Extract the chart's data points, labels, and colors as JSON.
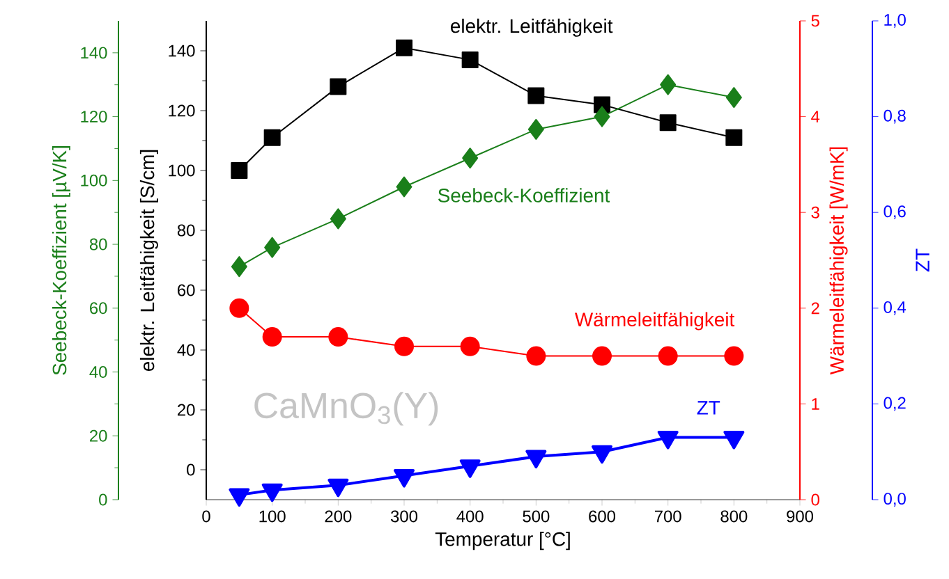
{
  "chart_data": [
    {
      "type": "line",
      "xlabel": "Temperatur [°C]",
      "ylabel": "elektr. Leitfähigkeit [S/cm]",
      "y2label": "Wärmeleitfähigkeit [W/mK]",
      "y3label": "Seebeck-Koeffizient [µV/K]",
      "annotations": [
        "CaMnO$_{3}$(Y)"
      ],
      "x": [
        50,
        100,
        200,
        300,
        400,
        500,
        600,
        700,
        800
      ],
      "xlim": [
        0,
        900
      ],
      "xticks": [
        0,
        100,
        200,
        300,
        400,
        500,
        600,
        700,
        800,
        900
      ],
      "ylim": [
        -10,
        150
      ],
      "yticks": [
        0,
        20,
        40,
        60,
        80,
        100,
        120,
        140
      ],
      "y2lim": [
        0,
        5
      ],
      "y2ticks": [
        0,
        1,
        2,
        3,
        4,
        5
      ],
      "y3lim": [
        0,
        150
      ],
      "y3ticks": [
        0,
        20,
        40,
        60,
        80,
        100,
        120,
        140
      ],
      "series": [
        {
          "name": "elektr. Leitfähigkeit",
          "color": "#000000",
          "marker": "square",
          "axis": "y",
          "values": [
            100,
            111,
            128,
            141,
            137,
            125,
            122,
            116,
            111
          ]
        },
        {
          "name": "Seebeck-Koeffizient",
          "color": "#1a7f1a",
          "marker": "diamond",
          "axis": "y3",
          "values": [
            73,
            79,
            88,
            98,
            107,
            116,
            120,
            130,
            126
          ]
        },
        {
          "name": "Wärmeleitfähigkeit",
          "color": "#ff0000",
          "marker": "circle",
          "axis": "y2",
          "values": [
            2.0,
            1.7,
            1.7,
            1.6,
            1.6,
            1.5,
            1.5,
            1.5,
            1.5
          ]
        }
      ]
    },
    {
      "type": "line",
      "ylabel": "ZT",
      "tick_labels": "y",
      "x": [
        50,
        100,
        200,
        300,
        400,
        500,
        600,
        700,
        800
      ],
      "xlim": [
        0,
        900
      ],
      "ylim": [
        0,
        1
      ],
      "yticks": [
        {
          "value": 0,
          "label": "0,0"
        },
        {
          "value": 0.2,
          "label": "0,2"
        },
        {
          "value": 0.4,
          "label": "0,4"
        },
        {
          "value": 0.6,
          "label": "0,6"
        },
        {
          "value": 0.8,
          "label": "0,8"
        },
        {
          "value": 1,
          "label": "1,0"
        }
      ],
      "series": [
        {
          "name": "ZT",
          "color": "#0000ff",
          "marker": "triangle",
          "values": [
            0.01,
            0.02,
            0.03,
            0.05,
            0.07,
            0.09,
            0.1,
            0.13,
            0.13
          ]
        }
      ]
    }
  ]
}
